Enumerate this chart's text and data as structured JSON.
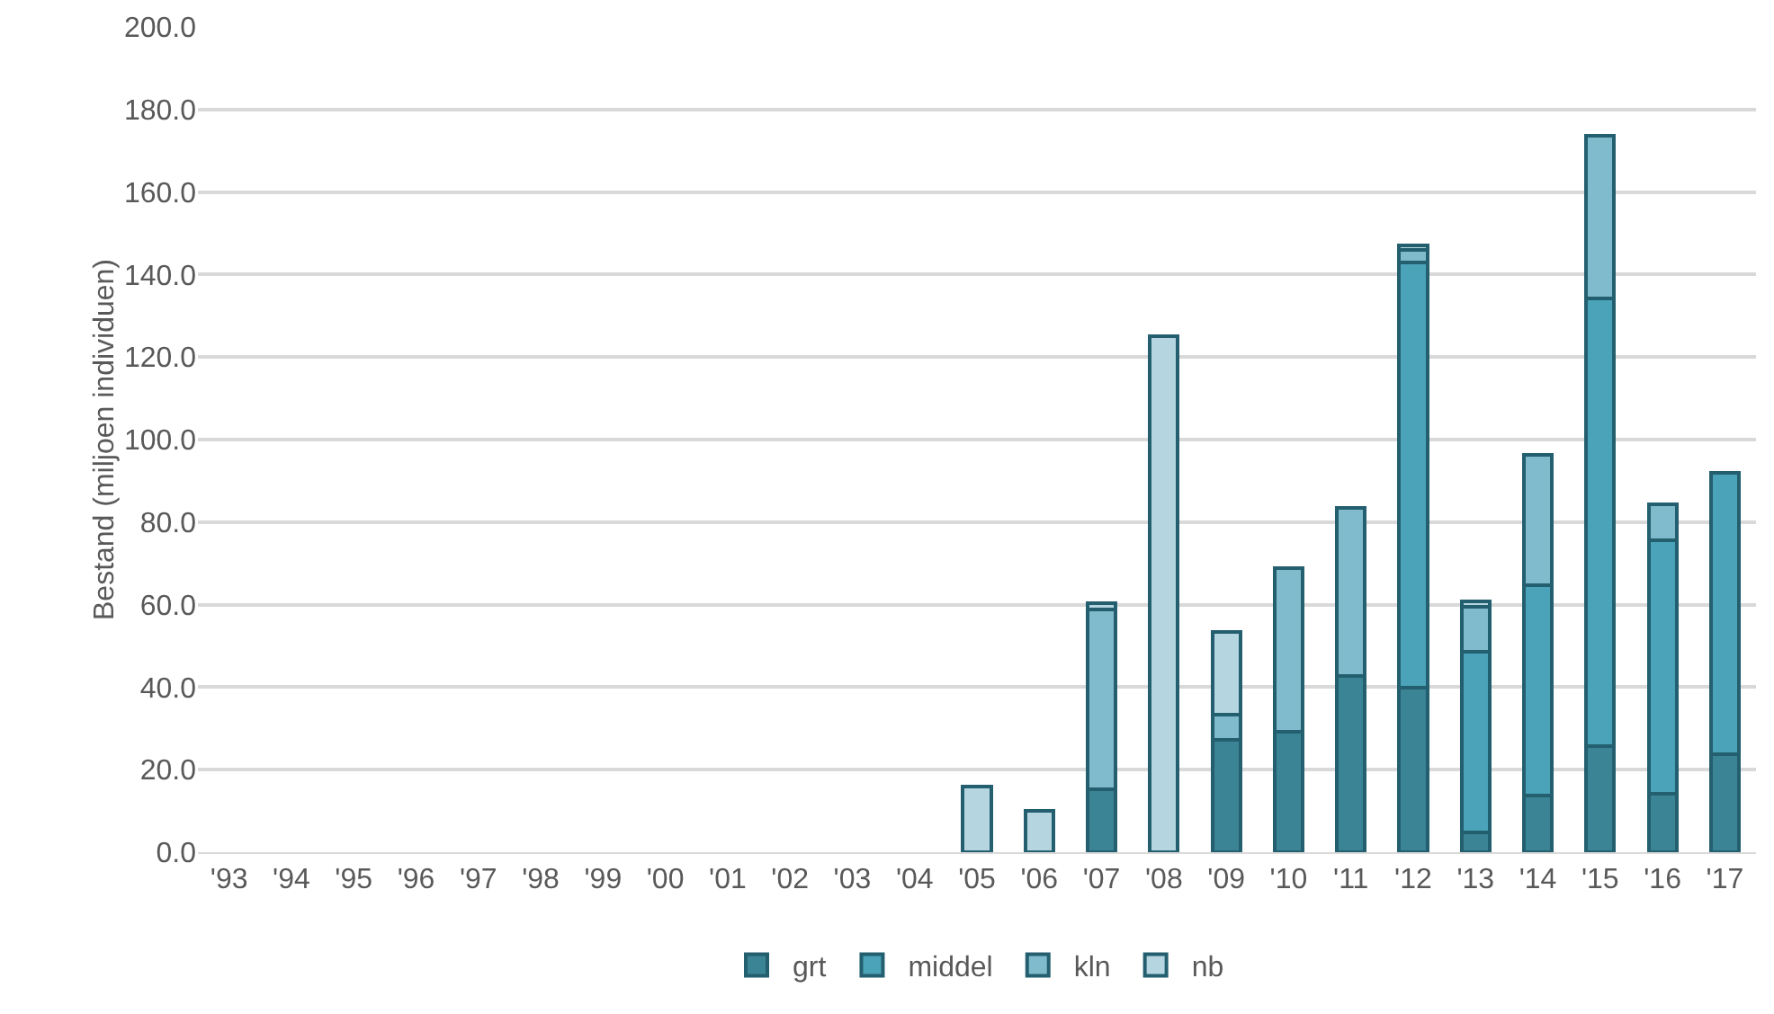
{
  "chart_data": {
    "type": "bar",
    "stacked": true,
    "ylabel": "Bestand (miljoen individuen)",
    "categories": [
      "'93",
      "'94",
      "'95",
      "'96",
      "'97",
      "'98",
      "'99",
      "'00",
      "'01",
      "'02",
      "'03",
      "'04",
      "'05",
      "'06",
      "'07",
      "'08",
      "'09",
      "'10",
      "'11",
      "'12",
      "'13",
      "'14",
      "'15",
      "'16",
      "'17"
    ],
    "series": [
      {
        "name": "grt",
        "color": "#3a8495",
        "values": [
          null,
          null,
          null,
          null,
          null,
          null,
          null,
          null,
          null,
          null,
          null,
          null,
          null,
          null,
          15.2,
          null,
          27.3,
          29.2,
          42.7,
          39.8,
          4.9,
          13.7,
          25.8,
          14.1,
          23.8
        ]
      },
      {
        "name": "middel",
        "color": "#4aa3b8",
        "values": [
          null,
          null,
          null,
          null,
          null,
          null,
          null,
          null,
          null,
          null,
          null,
          null,
          null,
          null,
          null,
          null,
          null,
          null,
          null,
          103.2,
          43.7,
          50.9,
          108.5,
          61.4,
          68.1
        ]
      },
      {
        "name": "kln",
        "color": "#7fbacd",
        "values": [
          null,
          null,
          null,
          null,
          null,
          null,
          null,
          null,
          null,
          null,
          null,
          null,
          null,
          null,
          43.6,
          null,
          6,
          39.6,
          40.8,
          3,
          10.9,
          31.8,
          39.4,
          8.8,
          null
        ]
      },
      {
        "name": "nb",
        "color": "#b5d6e0",
        "values": [
          null,
          null,
          null,
          null,
          null,
          null,
          null,
          null,
          null,
          null,
          null,
          null,
          16,
          10,
          1.6,
          125,
          20,
          null,
          null,
          1,
          1.2,
          null,
          null,
          null,
          null
        ]
      }
    ],
    "ylim": [
      0,
      200
    ],
    "yticks": [
      {
        "value": 0,
        "label": "0.0"
      },
      {
        "value": 20,
        "label": "20.0"
      },
      {
        "value": 40,
        "label": "40.0"
      },
      {
        "value": 60,
        "label": "60.0"
      },
      {
        "value": 80,
        "label": "80.0"
      },
      {
        "value": 100,
        "label": "100.0"
      },
      {
        "value": 120,
        "label": "120.0"
      },
      {
        "value": 140,
        "label": "140.0"
      },
      {
        "value": 160,
        "label": "160.0"
      },
      {
        "value": 180,
        "label": "180.0"
      },
      {
        "value": 200,
        "label": "200.0"
      }
    ],
    "grid": "y",
    "legend": "bottom"
  }
}
